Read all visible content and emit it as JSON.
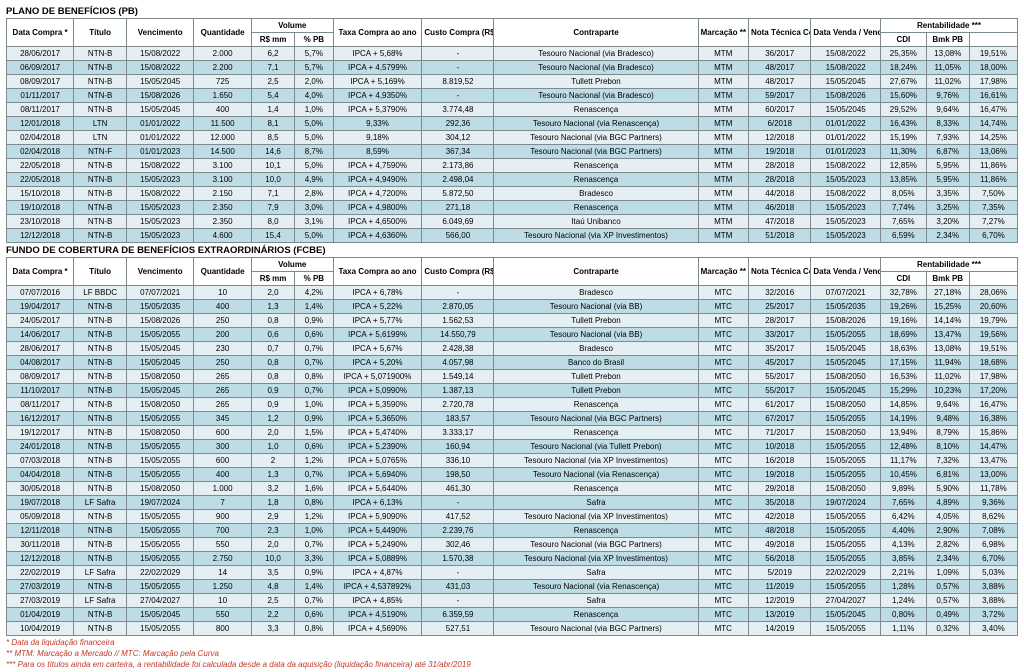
{
  "sections": [
    {
      "title": "PLANO DE BENEFÍCIOS (PB)",
      "headers": {
        "groups": [
          [
            "Data Compra *",
            1
          ],
          [
            "Título",
            1
          ],
          [
            "Vencimento",
            1
          ],
          [
            "Quantidade",
            1
          ],
          [
            "Volume",
            2
          ],
          [
            "Taxa Compra ao ano",
            1
          ],
          [
            "Custo Compra (R$)",
            1
          ],
          [
            "Contraparte",
            1
          ],
          [
            "Marcação **",
            1
          ],
          [
            "Nota Técnica Compra",
            1
          ],
          [
            "Data Venda / Vencimento *",
            1
          ],
          [
            "Rentabilidade ***",
            3
          ]
        ],
        "sub": [
          "",
          "",
          "",
          "",
          "R$ mm",
          "% PB",
          "",
          "",
          "",
          "",
          "",
          "Título",
          "CDI",
          "Bmk PB"
        ]
      },
      "rows": [
        [
          "28/06/2017",
          "NTN-B",
          "15/08/2022",
          "2.000",
          "6,2",
          "5,7%",
          "IPCA + 5,68%",
          "-",
          "Tesouro Nacional (via Bradesco)",
          "MTM",
          "36/2017",
          "15/08/2022",
          "25,35%",
          "13,08%",
          "19,51%"
        ],
        [
          "06/09/2017",
          "NTN-B",
          "15/08/2022",
          "2.200",
          "7,1",
          "5,7%",
          "IPCA + 4,5799%",
          "-",
          "Tesouro Nacional (via Bradesco)",
          "MTM",
          "48/2017",
          "15/08/2022",
          "18,24%",
          "11,05%",
          "18,00%"
        ],
        [
          "08/09/2017",
          "NTN-B",
          "15/05/2045",
          "725",
          "2,5",
          "2,0%",
          "IPCA + 5,169%",
          "8.819,52",
          "Tullett Prebon",
          "MTM",
          "48/2017",
          "15/05/2045",
          "27,67%",
          "11,02%",
          "17,98%"
        ],
        [
          "01/11/2017",
          "NTN-B",
          "15/08/2026",
          "1.650",
          "5,4",
          "4,0%",
          "IPCA + 4,9350%",
          "-",
          "Tesouro Nacional (via Bradesco)",
          "MTM",
          "59/2017",
          "15/08/2026",
          "15,60%",
          "9,76%",
          "16,61%"
        ],
        [
          "08/11/2017",
          "NTN-B",
          "15/05/2045",
          "400",
          "1,4",
          "1,0%",
          "IPCA + 5,3790%",
          "3.774,48",
          "Renascença",
          "MTM",
          "60/2017",
          "15/05/2045",
          "29,52%",
          "9,64%",
          "16,47%"
        ],
        [
          "12/01/2018",
          "LTN",
          "01/01/2022",
          "11.500",
          "8,1",
          "5,0%",
          "9,33%",
          "292,36",
          "Tesouro Nacional (via Renascença)",
          "MTM",
          "6/2018",
          "01/01/2022",
          "16,43%",
          "8,33%",
          "14,74%"
        ],
        [
          "02/04/2018",
          "LTN",
          "01/01/2022",
          "12.000",
          "8,5",
          "5,0%",
          "9,18%",
          "304,12",
          "Tesouro Nacional (via BGC Partners)",
          "MTM",
          "12/2018",
          "01/01/2022",
          "15,19%",
          "7,93%",
          "14,25%"
        ],
        [
          "02/04/2018",
          "NTN-F",
          "01/01/2023",
          "14.500",
          "14,6",
          "8,7%",
          "8,59%",
          "367,34",
          "Tesouro Nacional (via BGC Partners)",
          "MTM",
          "19/2018",
          "01/01/2023",
          "11,30%",
          "6,87%",
          "13,06%"
        ],
        [
          "22/05/2018",
          "NTN-B",
          "15/08/2022",
          "3.100",
          "10,1",
          "5,0%",
          "IPCA + 4,7590%",
          "2.173,86",
          "Renascença",
          "MTM",
          "28/2018",
          "15/08/2022",
          "12,85%",
          "5,95%",
          "11,86%"
        ],
        [
          "22/05/2018",
          "NTN-B",
          "15/05/2023",
          "3.100",
          "10,0",
          "4,9%",
          "IPCA + 4,9490%",
          "2.498,04",
          "Renascença",
          "MTM",
          "28/2018",
          "15/05/2023",
          "13,85%",
          "5,95%",
          "11,86%"
        ],
        [
          "15/10/2018",
          "NTN-B",
          "15/08/2022",
          "2.150",
          "7,1",
          "2,8%",
          "IPCA + 4,7200%",
          "5.872,50",
          "Bradesco",
          "MTM",
          "44/2018",
          "15/08/2022",
          "8,05%",
          "3,35%",
          "7,50%"
        ],
        [
          "19/10/2018",
          "NTN-B",
          "15/05/2023",
          "2.350",
          "7,9",
          "3,0%",
          "IPCA + 4,9800%",
          "271,18",
          "Renascença",
          "MTM",
          "46/2018",
          "15/05/2023",
          "7,74%",
          "3,25%",
          "7,35%"
        ],
        [
          "23/10/2018",
          "NTN-B",
          "15/05/2023",
          "2.350",
          "8,0",
          "3,1%",
          "IPCA + 4,6500%",
          "6.049,69",
          "Itaú Unibanco",
          "MTM",
          "47/2018",
          "15/05/2023",
          "7,65%",
          "3,20%",
          "7,27%"
        ],
        [
          "12/12/2018",
          "NTN-B",
          "15/05/2023",
          "4.600",
          "15,4",
          "5,0%",
          "IPCA + 4,6360%",
          "566,00",
          "Tesouro Nacional (via XP Investimentos)",
          "MTM",
          "51/2018",
          "15/05/2023",
          "6,59%",
          "2,34%",
          "6,70%"
        ]
      ]
    },
    {
      "title": "FUNDO DE COBERTURA DE BENEFÍCIOS EXTRAORDINÁRIOS (FCBE)",
      "headers": {
        "groups": [
          [
            "Data Compra *",
            1
          ],
          [
            "Título",
            1
          ],
          [
            "Vencimento",
            1
          ],
          [
            "Quantidade",
            1
          ],
          [
            "Volume",
            2
          ],
          [
            "Taxa Compra ao ano",
            1
          ],
          [
            "Custo Compra (R$)",
            1
          ],
          [
            "Contraparte",
            1
          ],
          [
            "Marcação **",
            1
          ],
          [
            "Nota Técnica Compra",
            1
          ],
          [
            "Data Venda / Vencimento *",
            1
          ],
          [
            "Rentabilidade ***",
            3
          ]
        ],
        "sub": [
          "",
          "",
          "",
          "",
          "R$ mm",
          "% PB",
          "",
          "",
          "",
          "",
          "",
          "Título",
          "CDI",
          "Bmk PB"
        ]
      },
      "rows": [
        [
          "07/07/2016",
          "LF BBDC",
          "07/07/2021",
          "10",
          "2,0",
          "4,2%",
          "IPCA + 6,78%",
          "-",
          "Bradesco",
          "MTC",
          "32/2016",
          "07/07/2021",
          "32,78%",
          "27,18%",
          "28,06%"
        ],
        [
          "19/04/2017",
          "NTN-B",
          "15/05/2035",
          "400",
          "1,3",
          "1,4%",
          "IPCA + 5,22%",
          "2.870,05",
          "Tesouro Nacional (via BB)",
          "MTC",
          "25/2017",
          "15/05/2035",
          "19,26%",
          "15,25%",
          "20,60%"
        ],
        [
          "24/05/2017",
          "NTN-B",
          "15/08/2026",
          "250",
          "0,8",
          "0,9%",
          "IPCA + 5,77%",
          "1.562,53",
          "Tullett Prebon",
          "MTC",
          "28/2017",
          "15/08/2026",
          "19,16%",
          "14,14%",
          "19,79%"
        ],
        [
          "14/06/2017",
          "NTN-B",
          "15/05/2055",
          "200",
          "0,6",
          "0,6%",
          "IPCA + 5,6199%",
          "14.550,79",
          "Tesouro Nacional (via BB)",
          "MTC",
          "33/2017",
          "15/05/2055",
          "18,69%",
          "13,47%",
          "19,56%"
        ],
        [
          "28/06/2017",
          "NTN-B",
          "15/05/2045",
          "230",
          "0,7",
          "0,7%",
          "IPCA + 5,67%",
          "2.428,38",
          "Bradesco",
          "MTC",
          "35/2017",
          "15/05/2045",
          "18,63%",
          "13,08%",
          "19,51%"
        ],
        [
          "04/08/2017",
          "NTN-B",
          "15/05/2045",
          "250",
          "0,8",
          "0,7%",
          "IPCA + 5,20%",
          "4.057,98",
          "Banco do Brasil",
          "MTC",
          "45/2017",
          "15/05/2045",
          "17,15%",
          "11,94%",
          "18,68%"
        ],
        [
          "08/09/2017",
          "NTN-B",
          "15/08/2050",
          "265",
          "0,8",
          "0,8%",
          "IPCA + 5,071900%",
          "1.549,14",
          "Tullett Prebon",
          "MTC",
          "55/2017",
          "15/08/2050",
          "16,53%",
          "11,02%",
          "17,98%"
        ],
        [
          "11/10/2017",
          "NTN-B",
          "15/05/2045",
          "265",
          "0,9",
          "0,7%",
          "IPCA + 5,0990%",
          "1.387,13",
          "Tullett Prebon",
          "MTC",
          "55/2017",
          "15/05/2045",
          "15,29%",
          "10,23%",
          "17,20%"
        ],
        [
          "08/11/2017",
          "NTN-B",
          "15/08/2050",
          "265",
          "0,9",
          "1,0%",
          "IPCA + 5,3590%",
          "2.720,78",
          "Renascença",
          "MTC",
          "61/2017",
          "15/08/2050",
          "14,85%",
          "9,64%",
          "16,47%"
        ],
        [
          "16/12/2017",
          "NTN-B",
          "15/05/2055",
          "345",
          "1,2",
          "0,9%",
          "IPCA + 5,3650%",
          "183,57",
          "Tesouro Nacional (via BGC Partners)",
          "MTC",
          "67/2017",
          "15/05/2055",
          "14,19%",
          "9,48%",
          "16,38%"
        ],
        [
          "19/12/2017",
          "NTN-B",
          "15/08/2050",
          "600",
          "2,0",
          "1,5%",
          "IPCA + 5,4740%",
          "3.333,17",
          "Renascença",
          "MTC",
          "71/2017",
          "15/08/2050",
          "13,94%",
          "8,79%",
          "15,86%"
        ],
        [
          "24/01/2018",
          "NTN-B",
          "15/05/2055",
          "300",
          "1,0",
          "0,6%",
          "IPCA + 5,2390%",
          "160,94",
          "Tesouro Nacional (via Tullett Prebon)",
          "MTC",
          "10/2018",
          "15/05/2055",
          "12,48%",
          "8,10%",
          "14,47%"
        ],
        [
          "07/03/2018",
          "NTN-B",
          "15/05/2055",
          "600",
          "2",
          "1,2%",
          "IPCA + 5,0765%",
          "336,10",
          "Tesouro Nacional (via XP Investimentos)",
          "MTC",
          "16/2018",
          "15/05/2055",
          "11,17%",
          "7,32%",
          "13,47%"
        ],
        [
          "04/04/2018",
          "NTN-B",
          "15/05/2055",
          "400",
          "1,3",
          "0,7%",
          "IPCA + 5,6940%",
          "198,50",
          "Tesouro Nacional (via Renascença)",
          "MTC",
          "19/2018",
          "15/05/2055",
          "10,45%",
          "6,81%",
          "13,00%"
        ],
        [
          "30/05/2018",
          "NTN-B",
          "15/08/2050",
          "1.000",
          "3,2",
          "1,6%",
          "IPCA + 5,6440%",
          "461,30",
          "Renascença",
          "MTC",
          "29/2018",
          "15/08/2050",
          "9,89%",
          "5,90%",
          "11,78%"
        ],
        [
          "19/07/2018",
          "LF Safra",
          "19/07/2024",
          "7",
          "1,8",
          "0,8%",
          "IPCA + 6,13%",
          "-",
          "Safra",
          "MTC",
          "35/2018",
          "19/07/2024",
          "7,65%",
          "4,89%",
          "9,36%"
        ],
        [
          "05/09/2018",
          "NTN-B",
          "15/05/2055",
          "900",
          "2,9",
          "1,2%",
          "IPCA + 5,9090%",
          "417,52",
          "Tesouro Nacional (via XP Investimentos)",
          "MTC",
          "42/2018",
          "15/05/2055",
          "6,42%",
          "4,05%",
          "8,62%"
        ],
        [
          "12/11/2018",
          "NTN-B",
          "15/05/2055",
          "700",
          "2,3",
          "1,0%",
          "IPCA + 5,4490%",
          "2.239,76",
          "Renascença",
          "MTC",
          "48/2018",
          "15/05/2055",
          "4,40%",
          "2,90%",
          "7,08%"
        ],
        [
          "30/11/2018",
          "NTN-B",
          "15/05/2055",
          "550",
          "2,0",
          "0,7%",
          "IPCA + 5,2490%",
          "302,46",
          "Tesouro Nacional (via BGC Partners)",
          "MTC",
          "49/2018",
          "15/05/2055",
          "4,13%",
          "2,82%",
          "6,98%"
        ],
        [
          "12/12/2018",
          "NTN-B",
          "15/05/2055",
          "2.750",
          "10,0",
          "3,3%",
          "IPCA + 5,0889%",
          "1.570,38",
          "Tesouro Nacional (via XP Investimentos)",
          "MTC",
          "56/2018",
          "15/05/2055",
          "3,85%",
          "2,34%",
          "6,70%"
        ],
        [
          "22/02/2019",
          "LF Safra",
          "22/02/2029",
          "14",
          "3,5",
          "0,9%",
          "IPCA + 4,87%",
          "-",
          "Safra",
          "MTC",
          "5/2019",
          "22/02/2029",
          "2,21%",
          "1,09%",
          "5,03%"
        ],
        [
          "27/03/2019",
          "NTN-B",
          "15/05/2055",
          "1.250",
          "4,8",
          "1,4%",
          "IPCA + 4,537892%",
          "431,03",
          "Tesouro Nacional (via Renascença)",
          "MTC",
          "11/2019",
          "15/05/2055",
          "1,28%",
          "0,57%",
          "3,88%"
        ],
        [
          "27/03/2019",
          "LF Safra",
          "27/04/2027",
          "10",
          "2,5",
          "0,7%",
          "IPCA + 4,85%",
          "-",
          "Safra",
          "MTC",
          "12/2019",
          "27/04/2027",
          "1,24%",
          "0,57%",
          "3,88%"
        ],
        [
          "01/04/2019",
          "NTN-B",
          "15/05/2045",
          "550",
          "2,2",
          "0,6%",
          "IPCA + 4,5190%",
          "6.359,59",
          "Renascença",
          "MTC",
          "13/2019",
          "15/05/2045",
          "0,80%",
          "0,49%",
          "3,72%"
        ],
        [
          "10/04/2019",
          "NTN-B",
          "15/05/2055",
          "800",
          "3,3",
          "0,8%",
          "IPCA + 4,5690%",
          "527,51",
          "Tesouro Nacional (via BGC Partners)",
          "MTC",
          "14/2019",
          "15/05/2055",
          "1,11%",
          "0,32%",
          "3,40%"
        ]
      ]
    }
  ],
  "footnotes": [
    "* Data da liquidação financeira",
    "** MTM: Marcação a Mercado // MTC: Marcação pela Curva",
    "*** Para os títulos ainda em carteira, a rentabilidade foi calculada desde a data da aquisição (liquidação financeira) até 31/abr/2019"
  ]
}
